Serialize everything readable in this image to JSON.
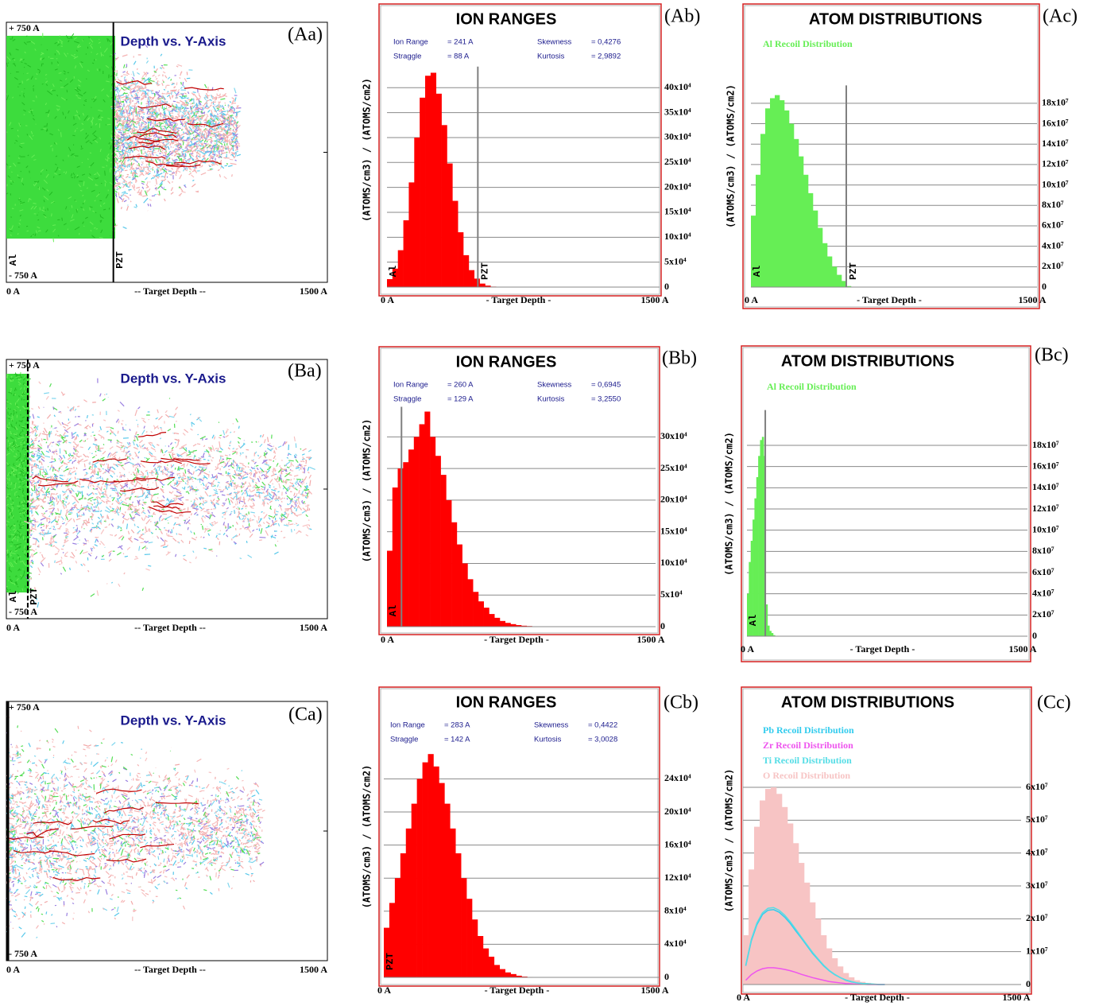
{
  "chart_data": [
    {
      "type": "trajectory",
      "panel": "(Aa)",
      "title": "Depth vs. Y-Axis",
      "xlim": [
        0,
        1500
      ],
      "xticks": [
        {
          "value": 0,
          "label": "0 A"
        },
        {
          "value": 1500,
          "label": "1500 A"
        }
      ],
      "xlabel": "-- Target Depth --",
      "ylim": [
        -750,
        750
      ],
      "yticks": [
        {
          "value": 750,
          "label": "+ 750 A"
        },
        {
          "value": -750,
          "label": "- 750 A"
        }
      ],
      "layer_boundary": 500,
      "layer_labels": [
        "Al",
        "PZT"
      ]
    },
    {
      "type": "histogram",
      "panel": "(Ab)",
      "title": "ION RANGES",
      "stats": [
        {
          "label": "Ion Range",
          "value": "= 241 A"
        },
        {
          "label": "Skewness",
          "value": "= 0,4276"
        },
        {
          "label": "Straggle",
          "value": "= 88 A"
        },
        {
          "label": "Kurtosis",
          "value": "= 2,9892"
        }
      ],
      "ylabel": "(ATOMS/cm3)  /  (ATOMS/cm2)",
      "xlabel": "- Target Depth -",
      "xlim": [
        0,
        1500
      ],
      "xticks": [
        {
          "value": 0,
          "label": "0 A"
        },
        {
          "value": 1500,
          "label": "1500 A"
        }
      ],
      "ylim": [
        0,
        560000
      ],
      "yticks": [
        0,
        {
          "value": 50000,
          "label": "5x10⁴"
        },
        {
          "value": 100000,
          "label": "10x10⁴"
        },
        {
          "value": 150000,
          "label": "15x10⁴"
        },
        {
          "value": 200000,
          "label": "20x10⁴"
        },
        {
          "value": 250000,
          "label": "25x10⁴"
        },
        {
          "value": 300000,
          "label": "30x10⁴"
        },
        {
          "value": 350000,
          "label": "35x10⁴"
        },
        {
          "value": 400000,
          "label": "40x10⁴"
        }
      ],
      "bins": [
        0,
        30,
        60,
        90,
        120,
        150,
        180,
        210,
        240,
        270,
        300,
        330,
        360,
        390,
        420,
        450,
        480,
        510,
        540,
        570,
        600,
        630,
        660
      ],
      "values": [
        16000,
        37000,
        74000,
        134000,
        210000,
        300000,
        380000,
        424000,
        430000,
        388000,
        325000,
        248000,
        173000,
        110000,
        64000,
        34000,
        17000,
        7000,
        3000,
        1000,
        500,
        0
      ],
      "color": "#ff0000",
      "layer_boundary": 500,
      "layer_labels": [
        "Al",
        "PZT"
      ]
    },
    {
      "type": "histogram",
      "panel": "(Ac)",
      "title": "ATOM DISTRIBUTIONS",
      "ylabel": "(ATOMS/cm3)  /  (ATOMS/cm2)",
      "xlabel": "- Target Depth -",
      "xlim": [
        0,
        1500
      ],
      "xticks": [
        {
          "value": 0,
          "label": "0 A"
        },
        {
          "value": 1500,
          "label": "1500 A"
        }
      ],
      "ylim": [
        0,
        250000000
      ],
      "yticks": [
        0,
        {
          "value": 20000000.0,
          "label": "2x10⁷"
        },
        {
          "value": 40000000.0,
          "label": "4x10⁷"
        },
        {
          "value": 60000000.0,
          "label": "6x10⁷"
        },
        {
          "value": 80000000.0,
          "label": "8x10⁷"
        },
        {
          "value": 100000000.0,
          "label": "10x10⁷"
        },
        {
          "value": 120000000.0,
          "label": "12x10⁷"
        },
        {
          "value": 140000000.0,
          "label": "14x10⁷"
        },
        {
          "value": 160000000.0,
          "label": "16x10⁷"
        },
        {
          "value": 180000000.0,
          "label": "18x10⁷"
        }
      ],
      "bins": [
        0,
        25,
        50,
        75,
        100,
        125,
        150,
        175,
        200,
        225,
        250,
        275,
        300,
        325,
        350,
        375,
        400,
        425,
        450,
        475,
        500,
        525
      ],
      "series": [
        {
          "name": "Al Recoil Distribution",
          "color": "#66ee55",
          "style": "fill",
          "values": [
            70000000.0,
            110000000.0,
            150000000.0,
            175000000.0,
            185000000.0,
            188000000.0,
            183000000.0,
            173000000.0,
            160000000.0,
            145000000.0,
            128000000.0,
            110000000.0,
            92000000.0,
            75000000.0,
            58000000.0,
            43000000.0,
            30000000.0,
            20000000.0,
            12000000.0,
            6000000.0,
            1000000.0
          ]
        }
      ],
      "layer_boundary": 500,
      "layer_labels": [
        "Al",
        "PZT"
      ]
    },
    {
      "type": "trajectory",
      "panel": "(Ba)",
      "title": "Depth vs. Y-Axis",
      "xlim": [
        0,
        1500
      ],
      "xticks": [
        {
          "value": 0,
          "label": "0 A"
        },
        {
          "value": 1500,
          "label": "1500 A"
        }
      ],
      "xlabel": "-- Target Depth --",
      "ylim": [
        -750,
        750
      ],
      "yticks": [
        {
          "value": 750,
          "label": "+ 750 A"
        },
        {
          "value": -750,
          "label": "- 750 A"
        }
      ],
      "layer_boundary": 100,
      "layer_labels": [
        "Al",
        "PZT"
      ]
    },
    {
      "type": "histogram",
      "panel": "(Bb)",
      "title": "ION RANGES",
      "stats": [
        {
          "label": "Ion Range",
          "value": "= 260 A"
        },
        {
          "label": "Skewness",
          "value": "= 0,6945"
        },
        {
          "label": "Straggle",
          "value": "= 129 A"
        },
        {
          "label": "Kurtosis",
          "value": "= 3,2550"
        }
      ],
      "ylabel": "(ATOMS/cm3)  /  (ATOMS/cm2)",
      "xlabel": "- Target Depth -",
      "xlim": [
        0,
        1500
      ],
      "xticks": [
        {
          "value": 0,
          "label": "0 A"
        },
        {
          "value": 1500,
          "label": "1500 A"
        }
      ],
      "ylim": [
        0,
        440000
      ],
      "yticks": [
        0,
        {
          "value": 50000,
          "label": "5x10⁴"
        },
        {
          "value": 100000,
          "label": "10x10⁴"
        },
        {
          "value": 150000,
          "label": "15x10⁴"
        },
        {
          "value": 200000,
          "label": "20x10⁴"
        },
        {
          "value": 250000,
          "label": "25x10⁴"
        },
        {
          "value": 300000,
          "label": "30x10⁴"
        }
      ],
      "bins": [
        0,
        30,
        60,
        90,
        120,
        150,
        180,
        210,
        240,
        270,
        300,
        330,
        360,
        390,
        420,
        450,
        480,
        510,
        540,
        570,
        600,
        630,
        660,
        690,
        720,
        750,
        780,
        810,
        840
      ],
      "values": [
        120000,
        220000,
        250000,
        260000,
        280000,
        300000,
        320000,
        340000,
        300000,
        270000,
        240000,
        200000,
        165000,
        130000,
        100000,
        75000,
        55000,
        40000,
        30000,
        20000,
        14000,
        9000,
        6000,
        4000,
        2500,
        1500,
        1000,
        500
      ],
      "color": "#ff0000",
      "layer_boundary": 81,
      "layer_labels": [
        "Al"
      ]
    },
    {
      "type": "histogram",
      "panel": "(Bc)",
      "title": "ATOM DISTRIBUTIONS",
      "ylabel": "(ATOMS/cm3)  /  (ATOMS/cm2)",
      "xlabel": "- Target Depth -",
      "xlim": [
        0,
        1500
      ],
      "xticks": [
        {
          "value": 0,
          "label": "0 A"
        },
        {
          "value": 1500,
          "label": "1500 A"
        }
      ],
      "ylim": [
        0,
        270000000
      ],
      "yticks": [
        0,
        {
          "value": 20000000.0,
          "label": "2x10⁷"
        },
        {
          "value": 40000000.0,
          "label": "4x10⁷"
        },
        {
          "value": 60000000.0,
          "label": "6x10⁷"
        },
        {
          "value": 80000000.0,
          "label": "8x10⁷"
        },
        {
          "value": 100000000.0,
          "label": "10x10⁷"
        },
        {
          "value": 120000000.0,
          "label": "12x10⁷"
        },
        {
          "value": 140000000.0,
          "label": "14x10⁷"
        },
        {
          "value": 160000000.0,
          "label": "16x10⁷"
        },
        {
          "value": 180000000.0,
          "label": "18x10⁷"
        }
      ],
      "bins": [
        0,
        10,
        20,
        30,
        40,
        50,
        60,
        70,
        80,
        90,
        100,
        110,
        120,
        130,
        140,
        150
      ],
      "series": [
        {
          "name": "Al Recoil Distribution",
          "color": "#66ee55",
          "style": "fill",
          "values": [
            40000000.0,
            70000000.0,
            90000000.0,
            110000000.0,
            130000000.0,
            150000000.0,
            170000000.0,
            185000000.0,
            188000000.0,
            170000000.0,
            30000000.0,
            10000000.0,
            5000000.0,
            3000000.0,
            1000000.0
          ]
        }
      ],
      "layer_boundary": 98,
      "layer_labels": [
        "Al"
      ]
    },
    {
      "type": "trajectory",
      "panel": "(Ca)",
      "title": "Depth vs. Y-Axis",
      "xlim": [
        0,
        1500
      ],
      "xticks": [
        {
          "value": 0,
          "label": "0 A"
        },
        {
          "value": 1500,
          "label": "1500 A"
        }
      ],
      "xlabel": "-- Target Depth --",
      "ylim": [
        -750,
        750
      ],
      "yticks": [
        {
          "value": 750,
          "label": "+ 750 A"
        },
        {
          "value": -750,
          "label": "- 750 A"
        }
      ]
    },
    {
      "type": "histogram",
      "panel": "(Cb)",
      "title": "ION RANGES",
      "stats": [
        {
          "label": "Ion Range",
          "value": "= 283 A"
        },
        {
          "label": "Skewness",
          "value": "= 0,4422"
        },
        {
          "label": "Straggle",
          "value": "= 142 A"
        },
        {
          "label": "Kurtosis",
          "value": "= 3,0028"
        }
      ],
      "ylabel": "(ATOMS/cm3)  /  (ATOMS/cm2)",
      "xlabel": "- Target Depth -",
      "xlim": [
        0,
        1500
      ],
      "xticks": [
        {
          "value": 0,
          "label": "0 A"
        },
        {
          "value": 1500,
          "label": "1500 A"
        }
      ],
      "ylim": [
        0,
        350000
      ],
      "yticks": [
        0,
        {
          "value": 40000,
          "label": "4x10⁴"
        },
        {
          "value": 80000,
          "label": "8x10⁴"
        },
        {
          "value": 120000,
          "label": "12x10⁴"
        },
        {
          "value": 160000,
          "label": "16x10⁴"
        },
        {
          "value": 200000,
          "label": "20x10⁴"
        },
        {
          "value": 240000,
          "label": "24x10⁴"
        }
      ],
      "bins": [
        0,
        30,
        60,
        90,
        120,
        150,
        180,
        210,
        240,
        270,
        300,
        330,
        360,
        390,
        420,
        450,
        480,
        510,
        540,
        570,
        600,
        630,
        660,
        690,
        720,
        750,
        780,
        810,
        840
      ],
      "values": [
        60000,
        90000,
        120000,
        150000,
        180000,
        210000,
        240000,
        260000,
        270000,
        255000,
        235000,
        210000,
        180000,
        150000,
        120000,
        95000,
        70000,
        50000,
        35000,
        25000,
        15000,
        10000,
        6000,
        4000,
        2000,
        1000,
        500,
        0
      ],
      "color": "#ff0000",
      "layer_labels": [
        "PZT"
      ]
    },
    {
      "type": "histogram",
      "panel": "(Cc)",
      "title": "ATOM DISTRIBUTIONS",
      "ylabel": "(ATOMS/cm3)  /  (ATOMS/cm2)",
      "xlabel": "- Target Depth -",
      "xlim": [
        0,
        1500
      ],
      "xticks": [
        {
          "value": 0,
          "label": "0 A"
        },
        {
          "value": 1500,
          "label": "1500 A"
        }
      ],
      "ylim": [
        0,
        90000000
      ],
      "yticks": [
        0,
        {
          "value": 10000000.0,
          "label": "1x10⁷"
        },
        {
          "value": 20000000.0,
          "label": "2x10⁷"
        },
        {
          "value": 30000000.0,
          "label": "3x10⁷"
        },
        {
          "value": 40000000.0,
          "label": "4x10⁷"
        },
        {
          "value": 50000000.0,
          "label": "5x10⁷"
        },
        {
          "value": 60000000.0,
          "label": "6x10⁷"
        }
      ],
      "bins": [
        0,
        30,
        60,
        90,
        120,
        150,
        180,
        210,
        240,
        270,
        300,
        330,
        360,
        390,
        420,
        450,
        480,
        510,
        540,
        570,
        600,
        630,
        660,
        690,
        720,
        750,
        780
      ],
      "series": [
        {
          "name": "Pb Recoil Distribution",
          "color": "#33ccee",
          "style": "line",
          "values": [
            5700000.0,
            13300000.0,
            18200000.0,
            21300000.0,
            22600000.0,
            22800000.0,
            22000000.0,
            20500000.0,
            18600000.0,
            16300000.0,
            14100000.0,
            11800000.0,
            9500000.0,
            7600000.0,
            5700000.0,
            4200000.0,
            3000000.0,
            2100000.0,
            1300000.0,
            800000.0,
            500000.0,
            300000.0,
            200000.0,
            100000.0,
            0,
            0
          ]
        },
        {
          "name": "Zr Recoil Distribution",
          "color": "#ee55ee",
          "style": "line",
          "values": [
            1300000.0,
            3000000.0,
            4100000.0,
            4800000.0,
            5100000.0,
            5100000.0,
            4900000.0,
            4600000.0,
            4200000.0,
            3700000.0,
            3100000.0,
            2600000.0,
            2100000.0,
            1700000.0,
            1300000.0,
            900000.0,
            700000.0,
            500000.0,
            300000.0,
            200000.0,
            100000.0,
            100000.0,
            0,
            0,
            0,
            0
          ]
        },
        {
          "name": "Ti Recoil Distribution",
          "color": "#55dde6",
          "style": "line",
          "values": [
            5900000.0,
            13700000.0,
            18700000.0,
            21800000.0,
            23200000.0,
            23400000.0,
            22600000.0,
            21100000.0,
            19100000.0,
            16800000.0,
            14400000.0,
            12100000.0,
            9800000.0,
            7800000.0,
            5900000.0,
            4300000.0,
            3100000.0,
            2100000.0,
            1400000.0,
            900000.0,
            500000.0,
            300000.0,
            200000.0,
            100000.0,
            0,
            0
          ]
        },
        {
          "name": "O Recoil Distribution",
          "color": "#f7c4c4",
          "style": "fill",
          "values": [
            15000000.0,
            35000000.0,
            48000000.0,
            56000000.0,
            59500000.0,
            60000000.0,
            58000000.0,
            54000000.0,
            49000000.0,
            43000000.0,
            37000000.0,
            31000000.0,
            25000000.0,
            20000000.0,
            15000000.0,
            11000000.0,
            8000000.0,
            5500000.0,
            3500000.0,
            2200000.0,
            1300000.0,
            800000.0,
            500000.0,
            300000.0,
            100000.0,
            0
          ]
        }
      ]
    }
  ]
}
